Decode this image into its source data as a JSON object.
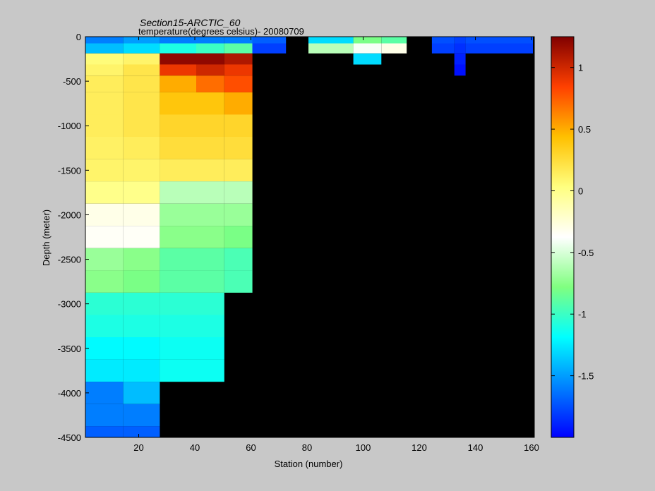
{
  "chart_data": {
    "type": "heatmap",
    "title": "Section15-ARCTIC_60",
    "subtitle": "temperature(degrees  celsius)- 20080709",
    "xlabel": "Station (number)",
    "ylabel": "Depth (meter)",
    "xlim": [
      1,
      161
    ],
    "ylim": [
      -4500,
      0
    ],
    "x_ticks": [
      20,
      40,
      60,
      80,
      100,
      120,
      140,
      160
    ],
    "x_tick_labels": [
      "20",
      "40",
      "60",
      "80",
      "100",
      "120",
      "140",
      "160"
    ],
    "y_ticks": [
      0,
      -500,
      -1000,
      -1500,
      -2000,
      -2500,
      -3000,
      -3500,
      -4000,
      -4500
    ],
    "y_tick_labels": [
      "0",
      "-500",
      "-1000",
      "-1500",
      "-2000",
      "-2500",
      "-3000",
      "-3500",
      "-4000",
      "-4500"
    ],
    "colorbar": {
      "colormap": "jet",
      "clim": [
        -2.0,
        1.25
      ],
      "ticks": [
        1,
        0.5,
        0,
        -0.5,
        -1,
        -1.5
      ],
      "tick_labels": [
        "1",
        "0.5",
        "0",
        "-0.5",
        "-1",
        "-1.5"
      ]
    },
    "missing_color": "#000000",
    "depth_levels": [
      -25,
      -125,
      -250,
      -375,
      -500,
      -750,
      -1000,
      -1250,
      -1500,
      -1750,
      -2000,
      -2250,
      -2500,
      -2750,
      -3000,
      -3250,
      -3500,
      -3750,
      -4000,
      -4250,
      -4500
    ],
    "station_bands": [
      {
        "stations": [
          1,
          14
        ],
        "temperature": [
          -1.6,
          -1.4,
          0.05,
          0.1,
          0.15,
          0.15,
          0.15,
          0.12,
          0.1,
          0.0,
          -0.3,
          -0.35,
          -0.7,
          -0.75,
          -1.05,
          -1.1,
          -1.2,
          -1.25,
          -1.6,
          -1.6,
          -1.7
        ]
      },
      {
        "stations": [
          15,
          27
        ],
        "temperature": [
          -1.5,
          -1.3,
          0.1,
          0.2,
          0.2,
          0.2,
          0.2,
          0.15,
          0.1,
          0.0,
          -0.3,
          -0.35,
          -0.75,
          -0.8,
          -1.05,
          -1.1,
          -1.2,
          -1.25,
          -1.4,
          -1.6,
          -1.7
        ]
      },
      {
        "stations": [
          28,
          40
        ],
        "temperature": [
          -1.6,
          -1.1,
          1.2,
          0.9,
          0.5,
          0.4,
          0.3,
          0.25,
          0.15,
          -0.6,
          -0.7,
          -0.75,
          -0.9,
          -0.9,
          -1.05,
          -1.1,
          -1.15,
          -1.15,
          null,
          null,
          null
        ]
      },
      {
        "stations": [
          41,
          50
        ],
        "temperature": [
          -1.6,
          -1.0,
          1.2,
          1.0,
          0.7,
          0.4,
          0.3,
          0.25,
          0.15,
          -0.6,
          -0.7,
          -0.75,
          -0.9,
          -0.9,
          -1.05,
          -1.1,
          -1.15,
          -1.15,
          null,
          null,
          null
        ]
      },
      {
        "stations": [
          51,
          60
        ],
        "temperature": [
          -1.6,
          -0.9,
          1.1,
          0.9,
          0.8,
          0.5,
          0.3,
          0.25,
          0.15,
          -0.6,
          -0.7,
          -0.8,
          -0.95,
          -0.95,
          null,
          null,
          null,
          null,
          null,
          null,
          null
        ]
      },
      {
        "stations": [
          61,
          72
        ],
        "temperature": [
          -1.7,
          -1.8,
          null,
          null,
          null,
          null,
          null,
          null,
          null,
          null,
          null,
          null,
          null,
          null,
          null,
          null,
          null,
          null,
          null,
          null,
          null
        ]
      },
      {
        "stations": [
          81,
          96
        ],
        "temperature": [
          -1.3,
          -0.6,
          null,
          null,
          null,
          null,
          null,
          null,
          null,
          null,
          null,
          null,
          null,
          null,
          null,
          null,
          null,
          null,
          null,
          null,
          null
        ]
      },
      {
        "stations": [
          97,
          106
        ],
        "temperature": [
          -0.8,
          -0.4,
          -1.3,
          null,
          null,
          null,
          null,
          null,
          null,
          null,
          null,
          null,
          null,
          null,
          null,
          null,
          null,
          null,
          null,
          null,
          null
        ]
      },
      {
        "stations": [
          107,
          115
        ],
        "temperature": [
          -0.9,
          -0.3,
          null,
          null,
          null,
          null,
          null,
          null,
          null,
          null,
          null,
          null,
          null,
          null,
          null,
          null,
          null,
          null,
          null,
          null,
          null
        ]
      },
      {
        "stations": [
          125,
          132
        ],
        "temperature": [
          -1.75,
          -1.8,
          null,
          null,
          null,
          null,
          null,
          null,
          null,
          null,
          null,
          null,
          null,
          null,
          null,
          null,
          null,
          null,
          null,
          null,
          null
        ]
      },
      {
        "stations": [
          133,
          136
        ],
        "temperature": [
          -1.8,
          -1.85,
          -1.9,
          -1.95,
          null,
          null,
          null,
          null,
          null,
          null,
          null,
          null,
          null,
          null,
          null,
          null,
          null,
          null,
          null,
          null,
          null
        ]
      },
      {
        "stations": [
          137,
          160
        ],
        "temperature": [
          -1.75,
          -1.8,
          null,
          null,
          null,
          null,
          null,
          null,
          null,
          null,
          null,
          null,
          null,
          null,
          null,
          null,
          null,
          null,
          null,
          null,
          null
        ]
      }
    ]
  }
}
